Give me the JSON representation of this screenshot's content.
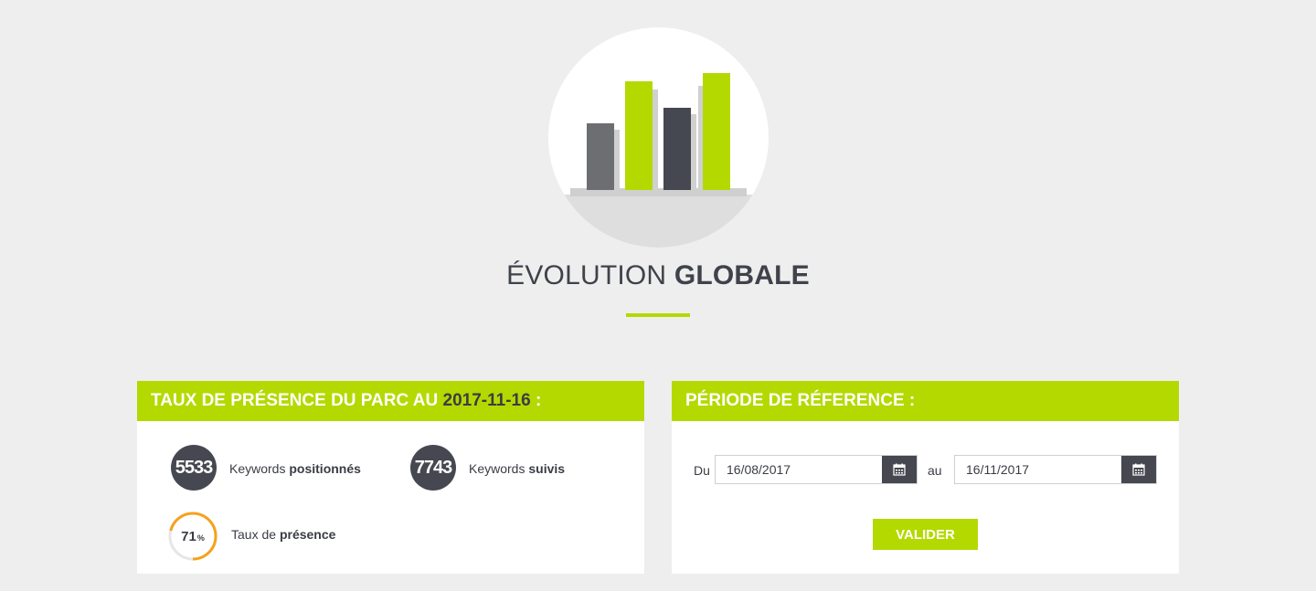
{
  "header": {
    "title_light": "ÉVOLUTION",
    "title_bold": "GLOBALE"
  },
  "presence_panel": {
    "title_prefix": "TAUX DE PRÉSENCE DU PARC AU",
    "date": "2017-11-16",
    "title_suffix": ":",
    "positioned_count": "5533",
    "positioned_label_prefix": "Keywords",
    "positioned_label_bold": "positionnés",
    "tracked_count": "7743",
    "tracked_label_prefix": "Keywords",
    "tracked_label_bold": "suivis",
    "presence_rate": "71",
    "presence_rate_unit": "%",
    "presence_rate_fraction": 0.71,
    "presence_label_prefix": "Taux de",
    "presence_label_bold": "présence"
  },
  "period_panel": {
    "title": "PÉRIODE DE RÉFERENCE :",
    "from_label": "Du",
    "from_value": "16/08/2017",
    "to_label": "au",
    "to_value": "16/11/2017",
    "validate_label": "VALIDER"
  },
  "colors": {
    "accent": "#b3d900",
    "dark": "#454850",
    "gauge": "#f5a21b",
    "background": "#eeeeee"
  },
  "icons": {
    "hero": "bar-chart-illustration",
    "date_picker": "calendar-icon"
  }
}
